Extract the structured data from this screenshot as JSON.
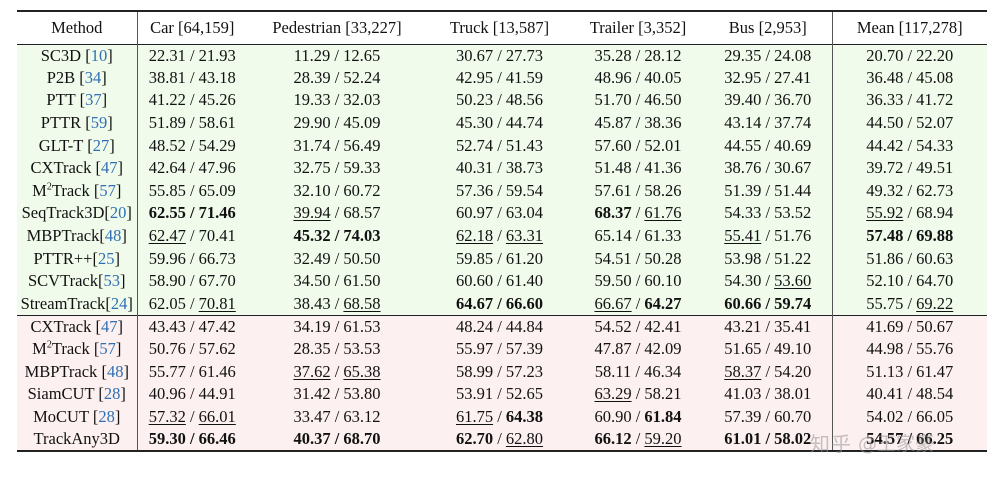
{
  "header": [
    "Method",
    "Car [64,159]",
    "Pedestrian [33,227]",
    "Truck [13,587]",
    "Trailer [3,352]",
    "Bus [2,953]",
    "Mean [117,278]"
  ],
  "groups": [
    [
      {
        "name": "SC3D",
        "ref": "10",
        "cells": [
          {
            "a": "22.31",
            "b": "21.93"
          },
          {
            "a": "11.29",
            "b": "12.65"
          },
          {
            "a": "30.67",
            "b": "27.73"
          },
          {
            "a": "35.28",
            "b": "28.12"
          },
          {
            "a": "29.35",
            "b": "24.08"
          },
          {
            "a": "20.70",
            "b": "22.20"
          }
        ]
      },
      {
        "name": "P2B",
        "ref": "34",
        "cells": [
          {
            "a": "38.81",
            "b": "43.18"
          },
          {
            "a": "28.39",
            "b": "52.24"
          },
          {
            "a": "42.95",
            "b": "41.59"
          },
          {
            "a": "48.96",
            "b": "40.05"
          },
          {
            "a": "32.95",
            "b": "27.41"
          },
          {
            "a": "36.48",
            "b": "45.08"
          }
        ]
      },
      {
        "name": "PTT",
        "ref": "37",
        "cells": [
          {
            "a": "41.22",
            "b": "45.26"
          },
          {
            "a": "19.33",
            "b": "32.03"
          },
          {
            "a": "50.23",
            "b": "48.56"
          },
          {
            "a": "51.70",
            "b": "46.50"
          },
          {
            "a": "39.40",
            "b": "36.70"
          },
          {
            "a": "36.33",
            "b": "41.72"
          }
        ]
      },
      {
        "name": "PTTR",
        "ref": "59",
        "cells": [
          {
            "a": "51.89",
            "b": "58.61"
          },
          {
            "a": "29.90",
            "b": "45.09"
          },
          {
            "a": "45.30",
            "b": "44.74"
          },
          {
            "a": "45.87",
            "b": "38.36"
          },
          {
            "a": "43.14",
            "b": "37.74"
          },
          {
            "a": "44.50",
            "b": "52.07"
          }
        ]
      },
      {
        "name": "GLT-T",
        "ref": "27",
        "cells": [
          {
            "a": "48.52",
            "b": "54.29"
          },
          {
            "a": "31.74",
            "b": "56.49"
          },
          {
            "a": "52.74",
            "b": "51.43"
          },
          {
            "a": "57.60",
            "b": "52.01"
          },
          {
            "a": "44.55",
            "b": "40.69"
          },
          {
            "a": "44.42",
            "b": "54.33"
          }
        ]
      },
      {
        "name": "CXTrack",
        "ref": "47",
        "cells": [
          {
            "a": "42.64",
            "b": "47.96"
          },
          {
            "a": "32.75",
            "b": "59.33"
          },
          {
            "a": "40.31",
            "b": "38.73"
          },
          {
            "a": "51.48",
            "b": "41.36"
          },
          {
            "a": "38.76",
            "b": "30.67"
          },
          {
            "a": "39.72",
            "b": "49.51"
          }
        ]
      },
      {
        "name": "M",
        "sup": "2",
        "name_tail": "Track",
        "ref": "57",
        "cells": [
          {
            "a": "55.85",
            "b": "65.09"
          },
          {
            "a": "32.10",
            "b": "60.72"
          },
          {
            "a": "57.36",
            "b": "59.54"
          },
          {
            "a": "57.61",
            "b": "58.26"
          },
          {
            "a": "51.39",
            "b": "51.44"
          },
          {
            "a": "49.32",
            "b": "62.73"
          }
        ]
      },
      {
        "name": "SeqTrack3D",
        "ref": "20",
        "tight": true,
        "cells": [
          {
            "a": "62.55",
            "b": "71.46",
            "bold": true
          },
          {
            "a": "39.94",
            "b": "68.57",
            "ua": true
          },
          {
            "a": "60.97",
            "b": "63.04"
          },
          {
            "a": "68.37",
            "b": "61.76",
            "ba": true,
            "ub": true
          },
          {
            "a": "54.33",
            "b": "53.52"
          },
          {
            "a": "55.92",
            "b": "68.94",
            "ua": true
          }
        ]
      },
      {
        "name": "MBPTrack",
        "ref": "48",
        "tight": true,
        "cells": [
          {
            "a": "62.47",
            "b": "70.41",
            "ua": true
          },
          {
            "a": "45.32",
            "b": "74.03",
            "bold": true
          },
          {
            "a": "62.18",
            "b": "63.31",
            "ua": true,
            "ub": true
          },
          {
            "a": "65.14",
            "b": "61.33"
          },
          {
            "a": "55.41",
            "b": "51.76",
            "ua": true
          },
          {
            "a": "57.48",
            "b": "69.88",
            "bold": true
          }
        ]
      },
      {
        "name": "PTTR++",
        "ref": "25",
        "tight": true,
        "cells": [
          {
            "a": "59.96",
            "b": "66.73"
          },
          {
            "a": "32.49",
            "b": "50.50"
          },
          {
            "a": "59.85",
            "b": "61.20"
          },
          {
            "a": "54.51",
            "b": "50.28"
          },
          {
            "a": "53.98",
            "b": "51.22"
          },
          {
            "a": "51.86",
            "b": "60.63"
          }
        ]
      },
      {
        "name": "SCVTrack",
        "ref": "53",
        "tight": true,
        "cells": [
          {
            "a": "58.90",
            "b": "67.70"
          },
          {
            "a": "34.50",
            "b": "61.50"
          },
          {
            "a": "60.60",
            "b": "61.40"
          },
          {
            "a": "59.50",
            "b": "60.10"
          },
          {
            "a": "54.30",
            "b": "53.60",
            "ub": true
          },
          {
            "a": "52.10",
            "b": "64.70"
          }
        ]
      },
      {
        "name": "StreamTrack",
        "ref": "24",
        "tight": true,
        "cells": [
          {
            "a": "62.05",
            "b": "70.81",
            "ub": true
          },
          {
            "a": "38.43",
            "b": "68.58",
            "ub": true
          },
          {
            "a": "64.67",
            "b": "66.60",
            "bold": true
          },
          {
            "a": "66.67",
            "b": "64.27",
            "ua": true,
            "bb": true
          },
          {
            "a": "60.66",
            "b": "59.74",
            "bold": true
          },
          {
            "a": "55.75",
            "b": "69.22",
            "ub": true
          }
        ]
      }
    ],
    [
      {
        "name": "CXTrack",
        "ref": "47",
        "cells": [
          {
            "a": "43.43",
            "b": "47.42"
          },
          {
            "a": "34.19",
            "b": "61.53"
          },
          {
            "a": "48.24",
            "b": "44.84"
          },
          {
            "a": "54.52",
            "b": "42.41"
          },
          {
            "a": "43.21",
            "b": "35.41"
          },
          {
            "a": "41.69",
            "b": "50.67"
          }
        ]
      },
      {
        "name": "M",
        "sup": "2",
        "name_tail": "Track",
        "ref": "57",
        "cells": [
          {
            "a": "50.76",
            "b": "57.62"
          },
          {
            "a": "28.35",
            "b": "53.53"
          },
          {
            "a": "55.97",
            "b": "57.39"
          },
          {
            "a": "47.87",
            "b": "42.09"
          },
          {
            "a": "51.65",
            "b": "49.10"
          },
          {
            "a": "44.98",
            "b": "55.76"
          }
        ]
      },
      {
        "name": "MBPTrack",
        "ref": "48",
        "cells": [
          {
            "a": "55.77",
            "b": "61.46"
          },
          {
            "a": "37.62",
            "b": "65.38",
            "ua": true,
            "ub": true
          },
          {
            "a": "58.99",
            "b": "57.23"
          },
          {
            "a": "58.11",
            "b": "46.34"
          },
          {
            "a": "58.37",
            "b": "54.20",
            "ua": true
          },
          {
            "a": "51.13",
            "b": "61.47"
          }
        ]
      },
      {
        "name": "SiamCUT",
        "ref": "28",
        "cells": [
          {
            "a": "40.96",
            "b": "44.91"
          },
          {
            "a": "31.42",
            "b": "53.80"
          },
          {
            "a": "53.91",
            "b": "52.65"
          },
          {
            "a": "63.29",
            "b": "58.21",
            "ua": true
          },
          {
            "a": "41.03",
            "b": "38.01"
          },
          {
            "a": "40.41",
            "b": "48.54"
          }
        ]
      },
      {
        "name": "MoCUT",
        "ref": "28",
        "cells": [
          {
            "a": "57.32",
            "b": "66.01",
            "ua": true,
            "ub": true
          },
          {
            "a": "33.47",
            "b": "63.12"
          },
          {
            "a": "61.75",
            "b": "64.38",
            "ua": true,
            "bb": true
          },
          {
            "a": "60.90",
            "b": "61.84",
            "bb": true
          },
          {
            "a": "57.39",
            "b": "60.70"
          },
          {
            "a": "54.02",
            "b": "66.05"
          }
        ]
      },
      {
        "name": "TrackAny3D",
        "cells": [
          {
            "a": "59.30",
            "b": "66.46",
            "bold": true
          },
          {
            "a": "40.37",
            "b": "68.70",
            "bold": true
          },
          {
            "a": "62.70",
            "b": "62.80",
            "ba": true,
            "ub": true
          },
          {
            "a": "66.12",
            "b": "59.20",
            "ba": true,
            "ub": true
          },
          {
            "a": "61.01",
            "b": "58.02",
            "bold": true
          },
          {
            "a": "54.57",
            "b": "66.25",
            "bold": true
          }
        ]
      }
    ]
  ],
  "watermark": {
    "logo": "知乎",
    "handle": "@王家豪"
  }
}
